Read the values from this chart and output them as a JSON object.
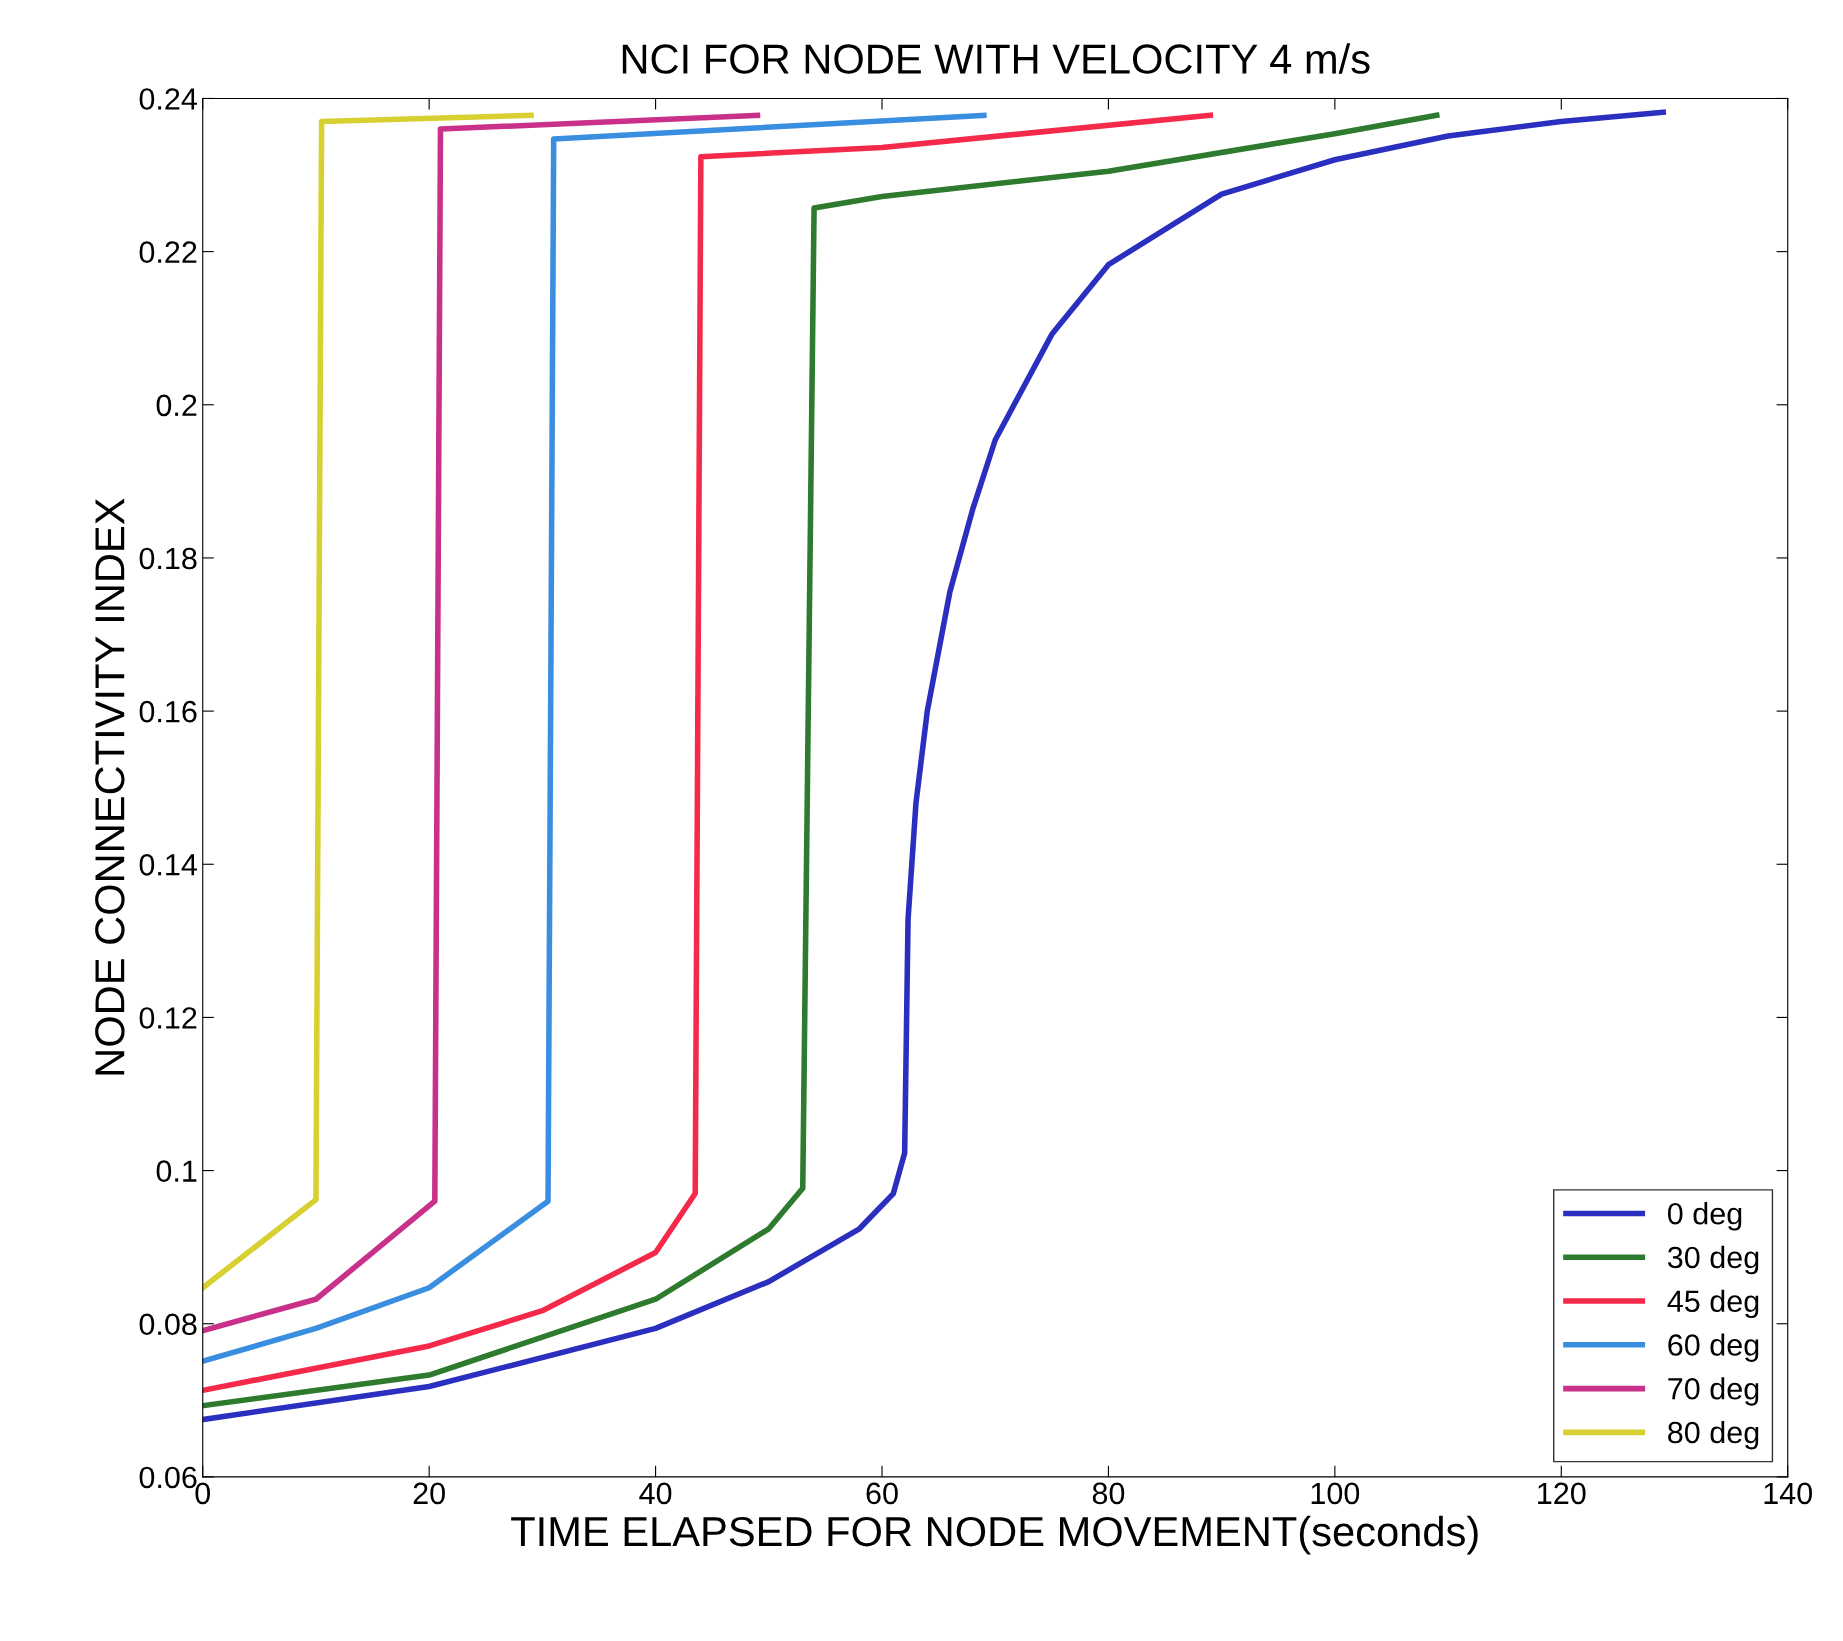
{
  "chart_data": {
    "type": "line",
    "title": "NCI FOR NODE WITH VELOCITY 4 m/s",
    "xlabel": "TIME ELAPSED FOR NODE MOVEMENT(seconds)",
    "ylabel": "NODE CONNECTIVITY INDEX",
    "xlim": [
      0,
      140
    ],
    "xticks": [
      0,
      20,
      40,
      60,
      80,
      100,
      120,
      140
    ],
    "ylim": [
      0.06,
      0.24
    ],
    "yticks": [
      0.06,
      0.08,
      0.1,
      0.12,
      0.14,
      0.16,
      0.18,
      0.2,
      0.22,
      0.24
    ],
    "grid": false,
    "legend": "bottom right",
    "marker": "none",
    "line_style": "solid",
    "series": [
      {
        "name": "0 deg",
        "color": "#2b2fc0",
        "x": [
          0,
          20,
          40,
          50,
          58,
          61,
          62,
          62.3,
          63,
          64,
          66,
          68,
          70,
          75,
          80,
          90,
          100,
          110,
          120,
          129
        ],
        "values": [
          0.0675,
          0.0718,
          0.0794,
          0.0855,
          0.0924,
          0.097,
          0.1023,
          0.1328,
          0.148,
          0.16,
          0.1756,
          0.1863,
          0.1954,
          0.2092,
          0.2183,
          0.2275,
          0.232,
          0.2351,
          0.237,
          0.2382
        ]
      },
      {
        "name": "30 deg",
        "color": "#2e7a2e",
        "x": [
          0,
          20,
          40,
          50,
          53,
          54,
          60,
          80,
          100,
          109
        ],
        "values": [
          0.0693,
          0.0733,
          0.0832,
          0.0924,
          0.0977,
          0.2257,
          0.2272,
          0.2305,
          0.2354,
          0.2378
        ]
      },
      {
        "name": "45 deg",
        "color": "#f52a4a",
        "x": [
          0,
          20,
          30,
          40,
          43.5,
          44,
          60,
          89
        ],
        "values": [
          0.0713,
          0.0771,
          0.0817,
          0.0893,
          0.097,
          0.2324,
          0.2336,
          0.2378
        ]
      },
      {
        "name": "60 deg",
        "color": "#3a8ee0",
        "x": [
          0,
          10,
          20,
          30.5,
          31,
          69
        ],
        "values": [
          0.0751,
          0.0794,
          0.0847,
          0.096,
          0.2347,
          0.2378
        ]
      },
      {
        "name": "70 deg",
        "color": "#c8308a",
        "x": [
          0,
          10,
          20.5,
          21,
          49
        ],
        "values": [
          0.0791,
          0.0832,
          0.096,
          0.236,
          0.2378
        ]
      },
      {
        "name": "80 deg",
        "color": "#d8d030",
        "x": [
          0,
          10,
          10.5,
          29
        ],
        "values": [
          0.0847,
          0.0962,
          0.237,
          0.2378
        ]
      }
    ]
  }
}
